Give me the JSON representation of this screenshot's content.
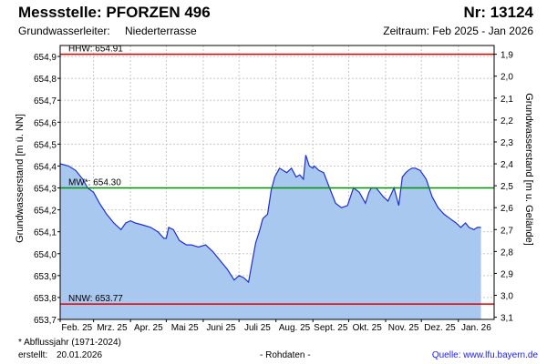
{
  "header": {
    "title": "Messstelle: PFORZEN 496",
    "nr": "Nr: 13124",
    "aquifer_label": "Grundwasserleiter:",
    "aquifer_value": "Niederterrasse",
    "period": "Zeitraum: Feb 2025 - Jan 2026"
  },
  "footer": {
    "footnote": "* Abflussjahr (1971-2024)",
    "created_label": "erstellt:",
    "created_value": "20.01.2026",
    "rawdata": "- Rohdaten -",
    "source": "Quelle: www.lfu.bayern.de"
  },
  "colors": {
    "fill": "#a8c8f0",
    "line": "#1f2fd0",
    "hhw": "#e00000",
    "mw": "#009000",
    "nnw": "#e00000",
    "grid": "#c8c8c8"
  },
  "chart_data": {
    "type": "area",
    "ylabel": "Grundwasserstand [m ü. NN]",
    "ylabel_right": "Grundwasserstand [m u. Gelände]",
    "ylim": [
      653.7,
      654.95
    ],
    "yticks": [
      "654,9",
      "654,8",
      "654,7",
      "654,6",
      "654,5",
      "654,4",
      "654,3",
      "654,2",
      "654,1",
      "654,0",
      "653,9",
      "653,8",
      "653,7"
    ],
    "ytick_values": [
      654.9,
      654.8,
      654.7,
      654.6,
      654.5,
      654.4,
      654.3,
      654.2,
      654.1,
      654.0,
      653.9,
      653.8,
      653.7
    ],
    "yticks_right": [
      "1,9",
      "2,0",
      "2,1",
      "2,2",
      "2,3",
      "2,4",
      "2,5",
      "2,6",
      "2,7",
      "2,8",
      "2,9",
      "3,0",
      "3,1"
    ],
    "ytick_right_values": [
      1.9,
      2.0,
      2.1,
      2.2,
      2.3,
      2.4,
      2.5,
      2.6,
      2.7,
      2.8,
      2.9,
      3.0,
      3.1
    ],
    "right_axis_reference": 656.81,
    "xlabels": [
      "Feb. 25",
      "Mrz. 25",
      "Apr. 25",
      "Mai 25",
      "Juni 25",
      "Juli 25",
      "Aug. 25",
      "Sept. 25",
      "Okt. 25",
      "Nov. 25",
      "Dez. 25",
      "Jan. 26"
    ],
    "xlabel_dates": [
      "2025-02-01",
      "2025-03-01",
      "2025-04-01",
      "2025-05-01",
      "2025-06-01",
      "2025-07-01",
      "2025-08-01",
      "2025-09-01",
      "2025-10-01",
      "2025-11-01",
      "2025-12-01",
      "2026-01-01"
    ],
    "xlim": [
      "2025-02-01",
      "2026-01-31"
    ],
    "grid": true,
    "reference_lines": [
      {
        "label": "HHW: 654.91",
        "value": 654.91,
        "color": "#e00000"
      },
      {
        "label": "MW*: 654.30",
        "value": 654.3,
        "color": "#009000"
      },
      {
        "label": "NNW: 653.77",
        "value": 653.77,
        "color": "#e00000"
      }
    ],
    "series": [
      {
        "x": [
          "2025-02-01",
          "2025-02-08",
          "2025-02-14",
          "2025-02-20",
          "2025-02-24",
          "2025-03-01",
          "2025-03-06",
          "2025-03-12",
          "2025-03-18",
          "2025-03-24",
          "2025-03-28",
          "2025-04-01",
          "2025-04-05",
          "2025-04-12",
          "2025-04-18",
          "2025-04-24",
          "2025-04-29",
          "2025-05-01",
          "2025-05-03",
          "2025-05-07",
          "2025-05-12",
          "2025-05-18",
          "2025-05-22",
          "2025-05-28",
          "2025-06-03",
          "2025-06-09",
          "2025-06-15",
          "2025-06-21",
          "2025-06-27",
          "2025-07-01",
          "2025-07-05",
          "2025-07-09",
          "2025-07-12",
          "2025-07-15",
          "2025-07-18",
          "2025-07-21",
          "2025-07-25",
          "2025-07-28",
          "2025-07-31",
          "2025-08-04",
          "2025-08-07",
          "2025-08-10",
          "2025-08-14",
          "2025-08-18",
          "2025-08-21",
          "2025-08-24",
          "2025-08-26",
          "2025-08-29",
          "2025-09-01",
          "2025-09-02",
          "2025-09-04",
          "2025-09-06",
          "2025-09-10",
          "2025-09-15",
          "2025-09-20",
          "2025-09-25",
          "2025-09-30",
          "2025-10-05",
          "2025-10-10",
          "2025-10-15",
          "2025-10-18",
          "2025-10-20",
          "2025-10-22",
          "2025-10-24",
          "2025-10-27",
          "2025-10-30",
          "2025-11-03",
          "2025-11-08",
          "2025-11-12",
          "2025-11-15",
          "2025-11-18",
          "2025-11-20",
          "2025-11-23",
          "2025-11-26",
          "2025-11-30",
          "2025-12-05",
          "2025-12-10",
          "2025-12-15",
          "2025-12-20",
          "2025-12-25",
          "2025-12-30",
          "2026-01-03",
          "2026-01-07",
          "2026-01-10",
          "2026-01-14",
          "2026-01-17",
          "2026-01-20"
        ],
        "y": [
          654.41,
          654.4,
          654.38,
          654.34,
          654.3,
          654.28,
          654.23,
          654.18,
          654.14,
          654.11,
          654.14,
          654.15,
          654.14,
          654.13,
          654.12,
          654.1,
          654.07,
          654.07,
          654.12,
          654.11,
          654.06,
          654.04,
          654.04,
          654.03,
          654.04,
          654.01,
          653.97,
          653.93,
          653.88,
          653.9,
          653.89,
          653.87,
          653.96,
          654.05,
          654.1,
          654.16,
          654.18,
          654.29,
          654.35,
          654.39,
          654.38,
          654.37,
          654.39,
          654.35,
          654.36,
          654.34,
          654.45,
          654.4,
          654.39,
          654.4,
          654.39,
          654.38,
          654.37,
          654.3,
          654.23,
          654.21,
          654.22,
          654.3,
          654.28,
          654.23,
          654.28,
          654.3,
          654.3,
          654.3,
          654.28,
          654.26,
          654.24,
          654.3,
          654.22,
          654.35,
          654.37,
          654.38,
          654.39,
          654.39,
          654.38,
          654.34,
          654.26,
          654.21,
          654.18,
          654.16,
          654.14,
          654.12,
          654.14,
          654.12,
          654.11,
          654.12,
          654.12
        ]
      }
    ]
  }
}
